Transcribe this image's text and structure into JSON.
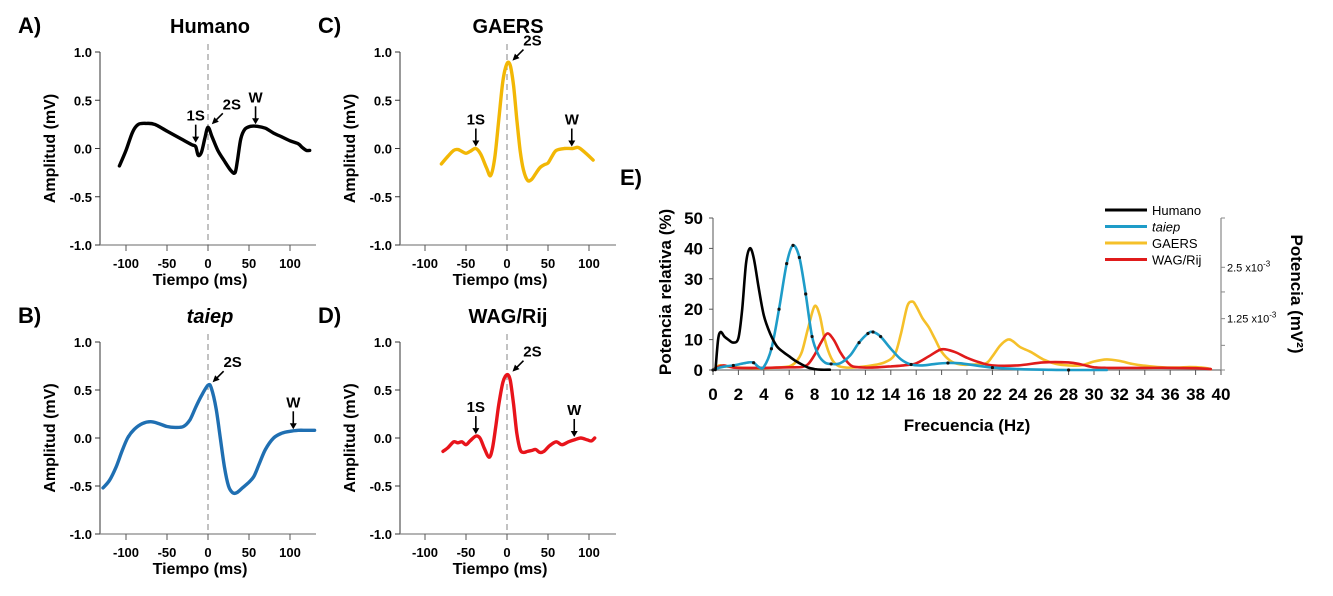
{
  "chart_data": [
    {
      "id": "A",
      "panel_label": "A)",
      "title": "Humano",
      "title_italic": false,
      "type": "line",
      "color": "#000000",
      "xlabel": "Tiempo (ms)",
      "ylabel": "Amplitud (mV)",
      "xlim": [
        -130,
        130
      ],
      "ylim": [
        -1.0,
        1.0
      ],
      "xticks": [
        -100,
        -50,
        0,
        50,
        100
      ],
      "xtick_labels": [
        "-100",
        "-50",
        "0",
        "50",
        "100"
      ],
      "yticks": [
        1.0,
        0.5,
        0.0,
        -0.5,
        -1.0
      ],
      "ytick_labels": [
        "1.0",
        "0.5",
        "0.0",
        "-0.5",
        "-1.0"
      ],
      "zero_line": "dashed",
      "x": [
        -108,
        -100,
        -92,
        -85,
        -75,
        -65,
        -50,
        -35,
        -20,
        -15,
        -12,
        -8,
        -4,
        0,
        5,
        12,
        20,
        28,
        33,
        36,
        40,
        45,
        52,
        60,
        70,
        80,
        90,
        100,
        110,
        115,
        120,
        124
      ],
      "y": [
        -0.18,
        -0.02,
        0.17,
        0.25,
        0.26,
        0.25,
        0.18,
        0.11,
        0.04,
        0.02,
        -0.07,
        -0.04,
        0.1,
        0.22,
        0.12,
        -0.02,
        -0.13,
        -0.23,
        -0.25,
        -0.12,
        0.1,
        0.2,
        0.23,
        0.23,
        0.21,
        0.16,
        0.12,
        0.08,
        0.05,
        0.01,
        -0.02,
        -0.02
      ],
      "annotations": [
        {
          "text": "1S",
          "x": -15,
          "y": 0.04,
          "style": "down-arrow"
        },
        {
          "text": "2S",
          "x": 1,
          "y": 0.22,
          "style": "diag-arrow"
        },
        {
          "text": "W",
          "x": 58,
          "y": 0.23,
          "style": "down-arrow"
        }
      ]
    },
    {
      "id": "B",
      "panel_label": "B)",
      "title": "taiep",
      "title_italic": true,
      "type": "line",
      "color": "#1f6fb2",
      "xlabel": "Tiempo (ms)",
      "ylabel": "Amplitud (mV)",
      "xlim": [
        -130,
        130
      ],
      "ylim": [
        -1.0,
        1.0
      ],
      "xticks": [
        -100,
        -50,
        0,
        50,
        100
      ],
      "xtick_labels": [
        "-100",
        "-50",
        "0",
        "50",
        "100"
      ],
      "yticks": [
        1.0,
        0.5,
        0.0,
        -0.5,
        -1.0
      ],
      "ytick_labels": [
        "1.0",
        "0.5",
        "0.0",
        "-0.5",
        "-1.0"
      ],
      "zero_line": "dashed",
      "x": [
        -128,
        -120,
        -112,
        -105,
        -98,
        -90,
        -80,
        -70,
        -60,
        -50,
        -40,
        -30,
        -22,
        -15,
        -8,
        0,
        4,
        10,
        15,
        20,
        25,
        30,
        35,
        42,
        50,
        56,
        62,
        70,
        80,
        90,
        100,
        110,
        120,
        130
      ],
      "y": [
        -0.52,
        -0.44,
        -0.3,
        -0.14,
        0.0,
        0.09,
        0.15,
        0.17,
        0.15,
        0.12,
        0.11,
        0.12,
        0.19,
        0.32,
        0.44,
        0.55,
        0.52,
        0.3,
        0.0,
        -0.3,
        -0.5,
        -0.57,
        -0.57,
        -0.52,
        -0.46,
        -0.4,
        -0.28,
        -0.12,
        0.0,
        0.05,
        0.07,
        0.08,
        0.08,
        0.08
      ],
      "annotations": [
        {
          "text": "2S",
          "x": 2,
          "y": 0.55,
          "style": "diag-arrow"
        },
        {
          "text": "W",
          "x": 104,
          "y": 0.07,
          "style": "down-arrow"
        }
      ]
    },
    {
      "id": "C",
      "panel_label": "C)",
      "title": "GAERS",
      "title_italic": false,
      "type": "line",
      "color": "#f2b705",
      "xlabel": "Tiempo (ms)",
      "ylabel": "Amplitud (mV)",
      "xlim": [
        -130,
        130
      ],
      "ylim": [
        -1.0,
        1.0
      ],
      "xticks": [
        -100,
        -50,
        0,
        50,
        100
      ],
      "xtick_labels": [
        "-100",
        "-50",
        "0",
        "50",
        "100"
      ],
      "yticks": [
        1.0,
        0.5,
        0.0,
        -0.5,
        -1.0
      ],
      "ytick_labels": [
        "1.0",
        "0.5",
        "0.0",
        "-0.5",
        "-1.0"
      ],
      "zero_line": "dashed",
      "x": [
        -80,
        -72,
        -65,
        -60,
        -55,
        -50,
        -45,
        -38,
        -32,
        -25,
        -20,
        -15,
        -10,
        -5,
        0,
        4,
        8,
        12,
        16,
        20,
        25,
        30,
        35,
        40,
        45,
        50,
        55,
        60,
        70,
        80,
        87,
        95,
        105
      ],
      "y": [
        -0.16,
        -0.08,
        -0.02,
        -0.01,
        -0.03,
        -0.05,
        -0.03,
        0.0,
        -0.06,
        -0.2,
        -0.28,
        -0.1,
        0.3,
        0.7,
        0.88,
        0.86,
        0.65,
        0.3,
        -0.02,
        -0.22,
        -0.33,
        -0.32,
        -0.26,
        -0.2,
        -0.17,
        -0.15,
        -0.08,
        -0.02,
        0.0,
        0.0,
        0.01,
        -0.04,
        -0.12
      ],
      "annotations": [
        {
          "text": "1S",
          "x": -38,
          "y": 0.0,
          "style": "down-arrow"
        },
        {
          "text": "2S",
          "x": 3,
          "y": 0.88,
          "style": "diag-arrow"
        },
        {
          "text": "W",
          "x": 79,
          "y": 0.0,
          "style": "down-arrow"
        }
      ]
    },
    {
      "id": "D",
      "panel_label": "D)",
      "title": "WAG/Rij",
      "title_italic": false,
      "type": "line",
      "color": "#e8141b",
      "xlabel": "Tiempo (ms)",
      "ylabel": "Amplitud (mV)",
      "xlim": [
        -130,
        130
      ],
      "ylim": [
        -1.0,
        1.0
      ],
      "xticks": [
        -100,
        -50,
        0,
        50,
        100
      ],
      "xtick_labels": [
        "-100",
        "-50",
        "0",
        "50",
        "100"
      ],
      "yticks": [
        1.0,
        0.5,
        0.0,
        -0.5,
        -1.0
      ],
      "ytick_labels": [
        "1.0",
        "0.5",
        "0.0",
        "-0.5",
        "-1.0"
      ],
      "zero_line": "dashed",
      "x": [
        -78,
        -72,
        -65,
        -60,
        -55,
        -50,
        -45,
        -38,
        -33,
        -28,
        -22,
        -18,
        -14,
        -10,
        -5,
        0,
        4,
        8,
        12,
        16,
        20,
        25,
        30,
        35,
        40,
        45,
        52,
        60,
        67,
        75,
        82,
        90,
        98,
        103,
        107
      ],
      "y": [
        -0.14,
        -0.1,
        -0.04,
        -0.05,
        -0.04,
        -0.07,
        -0.03,
        0.02,
        0.0,
        -0.1,
        -0.2,
        -0.12,
        0.1,
        0.35,
        0.58,
        0.66,
        0.6,
        0.35,
        0.05,
        -0.12,
        -0.15,
        -0.14,
        -0.13,
        -0.12,
        -0.15,
        -0.14,
        -0.08,
        -0.04,
        -0.07,
        -0.04,
        -0.02,
        0.0,
        -0.02,
        -0.03,
        0.0
      ],
      "annotations": [
        {
          "text": "1S",
          "x": -38,
          "y": 0.02,
          "style": "down-arrow"
        },
        {
          "text": "2S",
          "x": 3,
          "y": 0.66,
          "style": "diag-arrow"
        },
        {
          "text": "W",
          "x": 82,
          "y": -0.01,
          "style": "down-arrow"
        }
      ]
    },
    {
      "id": "E",
      "panel_label": "E)",
      "title": "",
      "type": "line",
      "xlabel": "Frecuencia (Hz)",
      "ylabel": "Potencia relativa (%)",
      "ylabel_right": "Potencia (mV²)",
      "xlim": [
        0,
        40
      ],
      "ylim": [
        0,
        50
      ],
      "xticks": [
        0,
        2,
        4,
        6,
        8,
        10,
        12,
        14,
        16,
        18,
        20,
        22,
        24,
        26,
        28,
        30,
        32,
        34,
        36,
        38,
        40
      ],
      "xtick_labels": [
        "0",
        "2",
        "4",
        "6",
        "8",
        "10",
        "12",
        "14",
        "16",
        "18",
        "20",
        "22",
        "24",
        "26",
        "28",
        "30",
        "32",
        "34",
        "36",
        "38",
        "40"
      ],
      "yticks": [
        0,
        10,
        20,
        30,
        40,
        50
      ],
      "ytick_labels": [
        "0",
        "10",
        "20",
        "30",
        "40",
        "50"
      ],
      "right_axis": {
        "range": [
          0,
          0.0037
        ],
        "ticks": [
          0,
          0.0006,
          0.00125,
          0.0019,
          0.0025
        ],
        "labeled": [
          {
            "value": 0.0025,
            "base": "2.5 x10",
            "exp": "-3"
          },
          {
            "value": 0.00125,
            "base": "1.25 x10",
            "exp": "-3"
          }
        ]
      },
      "legend": {
        "position": "top-right",
        "entries": [
          {
            "label": "Humano",
            "color": "#000000",
            "italic": false
          },
          {
            "label": "taiep",
            "color": "#1e9cc8",
            "italic": true
          },
          {
            "label": "GAERS",
            "color": "#f5c02a",
            "italic": false
          },
          {
            "label": "WAG/Rij",
            "color": "#e01b1b",
            "italic": false
          }
        ]
      },
      "series": [
        {
          "name": "Humano",
          "color": "#000000",
          "x": [
            0.2,
            0.4,
            0.6,
            0.9,
            1.2,
            1.6,
            2.0,
            2.3,
            2.6,
            2.9,
            3.2,
            3.6,
            4.0,
            4.5,
            5.0,
            5.5,
            6.0,
            6.5,
            7.0,
            7.5,
            8.0,
            8.5,
            9.2
          ],
          "y": [
            0,
            10,
            12.5,
            11,
            10,
            9,
            10.5,
            20,
            35,
            40,
            37,
            27,
            18,
            12,
            8,
            6,
            4.5,
            3,
            1.8,
            0.8,
            0.3,
            0.1,
            0.1
          ]
        },
        {
          "name": "taiep",
          "color": "#1e9cc8",
          "x": [
            0,
            0.5,
            1.0,
            1.6,
            2.2,
            2.8,
            3.2,
            3.6,
            4.0,
            4.6,
            5.2,
            5.8,
            6.3,
            6.8,
            7.3,
            7.8,
            8.3,
            8.8,
            9.3,
            10.0,
            10.8,
            11.5,
            12.2,
            12.6,
            13.2,
            14.0,
            14.8,
            15.6,
            16.5,
            17.5,
            18.5,
            19.5,
            20.5,
            22,
            24,
            26,
            28,
            30,
            31
          ],
          "y": [
            0,
            0.8,
            1.2,
            1.5,
            2.0,
            2.5,
            2.4,
            1.0,
            1.0,
            7,
            20,
            35,
            41,
            37,
            25,
            11,
            5,
            2.5,
            2.0,
            2.2,
            4.8,
            9,
            12,
            12.5,
            11,
            7,
            3.5,
            1.8,
            1.5,
            2.0,
            2.3,
            2.2,
            1.6,
            0.8,
            0.3,
            0.1,
            0.0,
            0.0,
            0.0
          ],
          "error_bars": true
        },
        {
          "name": "GAERS",
          "color": "#f5c02a",
          "x": [
            0,
            0.5,
            1.0,
            2.0,
            3.0,
            4.0,
            5.0,
            6.0,
            6.5,
            7.0,
            7.5,
            8.0,
            8.4,
            8.8,
            9.3,
            9.8,
            10.5,
            11.5,
            12.5,
            13.5,
            14.3,
            14.8,
            15.3,
            15.7,
            16.0,
            16.5,
            17.0,
            17.5,
            18.0,
            18.7,
            19.5,
            20.5,
            21.5,
            22.0,
            22.6,
            23.2,
            23.6,
            24.2,
            25.0,
            26.0,
            27.0,
            28.0,
            29.0,
            30.0,
            31.0,
            32.0,
            33.0,
            34.0,
            35.0,
            36.5,
            37.5,
            38.5,
            39.2
          ],
          "y": [
            0,
            1.5,
            1.2,
            0.8,
            0.6,
            0.6,
            0.8,
            1.2,
            2.5,
            6,
            14,
            21,
            18,
            10,
            4,
            1.5,
            0.8,
            1.0,
            1.5,
            2.5,
            5,
            12,
            21,
            22.5,
            21,
            17,
            14,
            10,
            6,
            3,
            1.8,
            1.8,
            2.2,
            4.5,
            8,
            10,
            9.5,
            7.5,
            6,
            3.5,
            2.0,
            1.5,
            1.5,
            2.8,
            3.5,
            3.0,
            2.0,
            1.4,
            1.0,
            0.8,
            1.0,
            0.8,
            0.3
          ]
        },
        {
          "name": "WAG/Rij",
          "color": "#e01b1b",
          "x": [
            0,
            0.4,
            0.8,
            1.2,
            1.6,
            2.0,
            3.0,
            4.0,
            5.0,
            6.0,
            7.0,
            7.5,
            8.0,
            8.5,
            9.0,
            9.5,
            10.0,
            10.5,
            11.0,
            12.0,
            13.0,
            14.0,
            15.0,
            16.0,
            17.0,
            18.0,
            19.0,
            20.0,
            21.0,
            22.0,
            24.0,
            26.0,
            28.0,
            29.0,
            30.0,
            31.0,
            32.0,
            34.0,
            36.0,
            38.0,
            39.2
          ],
          "y": [
            0,
            1.0,
            1.5,
            1.2,
            0.8,
            0.7,
            0.7,
            0.7,
            0.8,
            0.9,
            1.0,
            2.0,
            5,
            9,
            12,
            10,
            6,
            3,
            1.2,
            0.8,
            0.9,
            1.2,
            1.5,
            2.2,
            4.5,
            6.8,
            6.0,
            4.0,
            2.5,
            1.5,
            1.5,
            2.5,
            2.5,
            1.8,
            0.9,
            0.7,
            0.7,
            0.7,
            0.7,
            0.6,
            0.3
          ]
        }
      ]
    }
  ]
}
